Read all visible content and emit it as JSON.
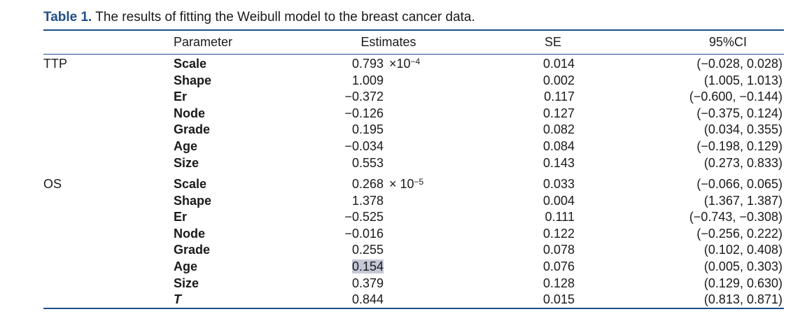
{
  "caption": {
    "label": "Table 1.",
    "text": "The results of fitting the Weibull model to the breast cancer data."
  },
  "header": {
    "parameter": "Parameter",
    "estimates": "Estimates",
    "se": "SE",
    "ci": "95%CI"
  },
  "groups": [
    {
      "name": "TTP",
      "rows": [
        {
          "param": "Scale",
          "est": "0.793",
          "sci": "×10",
          "exp": "−4",
          "se": "0.014",
          "ci": "(−0.028, 0.028)"
        },
        {
          "param": "Shape",
          "est": "1.009",
          "se": "0.002",
          "ci": "(1.005, 1.013)"
        },
        {
          "param": "Er",
          "est": "−0.372",
          "se": "0.117",
          "ci": "(−0.600, −0.144)"
        },
        {
          "param": "Node",
          "est": "−0.126",
          "se": "0.127",
          "ci": "(−0.375, 0.124)"
        },
        {
          "param": "Grade",
          "est": "0.195",
          "se": "0.082",
          "ci": "(0.034, 0.355)"
        },
        {
          "param": "Age",
          "est": "−0.034",
          "se": "0.084",
          "ci": "(−0.198, 0.129)"
        },
        {
          "param": "Size",
          "est": "0.553",
          "se": "0.143",
          "ci": "(0.273, 0.833)"
        }
      ]
    },
    {
      "name": "OS",
      "rows": [
        {
          "param": "Scale",
          "est": "0.268",
          "sci": "× 10",
          "exp": "−5",
          "se": "0.033",
          "ci": "(−0.066, 0.065)"
        },
        {
          "param": "Shape",
          "est": "1.378",
          "se": "0.004",
          "ci": "(1.367, 1.387)"
        },
        {
          "param": "Er",
          "est": "−0.525",
          "se": "0.111",
          "ci": "(−0.743, −0.308)"
        },
        {
          "param": "Node",
          "est": "−0.016",
          "se": "0.122",
          "ci": "(−0.256, 0.222)"
        },
        {
          "param": "Grade",
          "est": "0.255",
          "se": "0.078",
          "ci": "(0.102, 0.408)"
        },
        {
          "param": "Age",
          "est": "0.154",
          "se": "0.076",
          "ci": "(0.005, 0.303)",
          "highlight": true
        },
        {
          "param": "Size",
          "est": "0.379",
          "se": "0.128",
          "ci": "(0.129, 0.630)"
        },
        {
          "param": "T",
          "est": "0.844",
          "se": "0.015",
          "ci": "(0.813, 0.871)",
          "italic": true
        }
      ]
    }
  ]
}
